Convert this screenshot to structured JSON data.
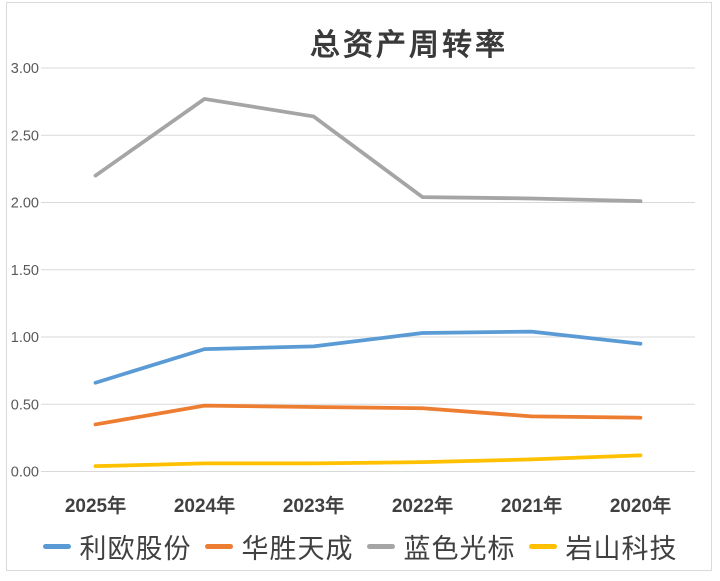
{
  "window": {
    "background_color": "#ffffff",
    "frame_border_color": "#d9d9d9"
  },
  "chart_data": {
    "type": "line",
    "title": "总资产周转率",
    "categories": [
      "2025年",
      "2024年",
      "2023年",
      "2022年",
      "2021年",
      "2020年"
    ],
    "series": [
      {
        "name": "利欧股份",
        "color": "#5B9BD5",
        "values": [
          0.66,
          0.91,
          0.93,
          1.03,
          1.04,
          0.95
        ]
      },
      {
        "name": "华胜天成",
        "color": "#ED7D31",
        "values": [
          0.35,
          0.49,
          0.48,
          0.47,
          0.41,
          0.4
        ]
      },
      {
        "name": "蓝色光标",
        "color": "#A5A5A5",
        "values": [
          2.2,
          2.77,
          2.64,
          2.04,
          2.03,
          2.01
        ]
      },
      {
        "name": "岩山科技",
        "color": "#FFC000",
        "values": [
          0.04,
          0.06,
          0.06,
          0.07,
          0.09,
          0.12
        ]
      }
    ],
    "y_ticks": [
      "0.00",
      "0.50",
      "1.00",
      "1.50",
      "2.00",
      "2.50",
      "3.00"
    ],
    "ylim": [
      0.0,
      3.0
    ],
    "xlabel": "",
    "ylabel": "",
    "grid": "horizontal",
    "gridline_color": "#d9d9d9",
    "axis_tick_color": "#595959",
    "category_label_color": "#404040",
    "legend_position": "bottom"
  }
}
